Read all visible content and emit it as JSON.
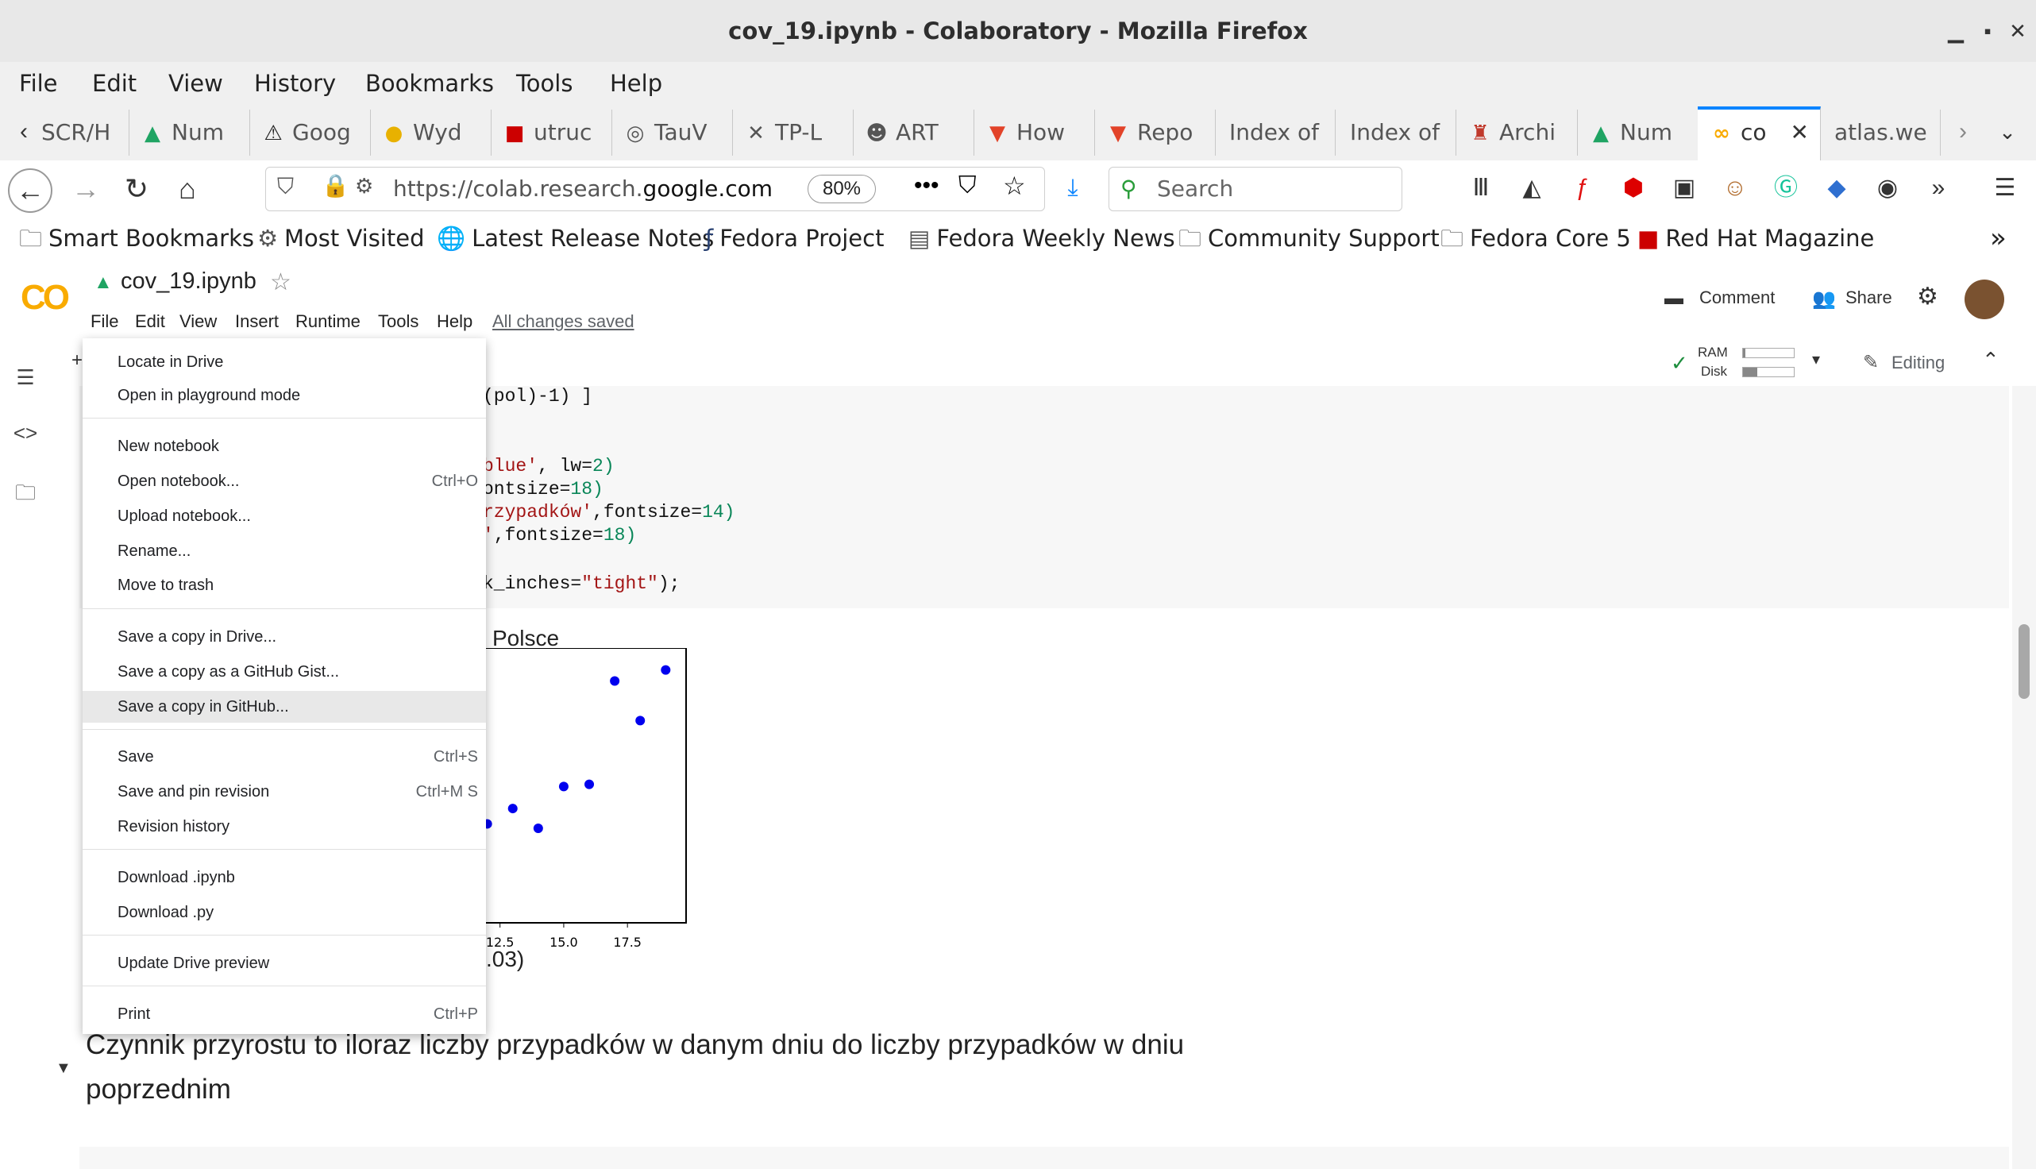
{
  "window": {
    "title": "cov_19.ipynb - Colaboratory - Mozilla Firefox"
  },
  "browser_menu": [
    "File",
    "Edit",
    "View",
    "History",
    "Bookmarks",
    "Tools",
    "Help"
  ],
  "tabs": [
    {
      "label": "SCR/H",
      "icon": "page-icon"
    },
    {
      "label": "Num",
      "icon": "drive-icon"
    },
    {
      "label": "Goog",
      "icon": "warning-icon"
    },
    {
      "label": "Wyd",
      "icon": "y-icon"
    },
    {
      "label": "utruc",
      "icon": "flag-icon"
    },
    {
      "label": "TauV",
      "icon": "tau-icon"
    },
    {
      "label": "TP-L",
      "icon": "x-icon"
    },
    {
      "label": "ART",
      "icon": "panda-icon"
    },
    {
      "label": "How",
      "icon": "gitlab-icon"
    },
    {
      "label": "Repo",
      "icon": "gitlab-icon"
    },
    {
      "label": "Index of",
      "icon": ""
    },
    {
      "label": "Index of",
      "icon": ""
    },
    {
      "label": "Archi",
      "icon": "archive-icon"
    },
    {
      "label": "Num",
      "icon": "drive-icon"
    },
    {
      "label": "co",
      "icon": "colab-icon"
    },
    {
      "label": "atlas.we",
      "icon": ""
    }
  ],
  "nav": {
    "url_prefix": "https://colab.research.",
    "url_domain": "google.com",
    "zoom": "80%",
    "search_placeholder": "Search"
  },
  "bookmarks": [
    {
      "label": "Smart Bookmarks",
      "icon": "folder-icon"
    },
    {
      "label": "Most Visited",
      "icon": "gear-icon"
    },
    {
      "label": "Latest Release Notes",
      "icon": "globe-icon"
    },
    {
      "label": "Fedora Project",
      "icon": "fedora-icon"
    },
    {
      "label": "Fedora Weekly News",
      "icon": "news-icon"
    },
    {
      "label": "Community Support",
      "icon": "folder-icon"
    },
    {
      "label": "Fedora Core 5",
      "icon": "folder-icon"
    },
    {
      "label": "Red Hat Magazine",
      "icon": "redhat-icon"
    }
  ],
  "colab": {
    "logo": "CO",
    "notebook_name": "cov_19.ipynb",
    "menu": [
      "File",
      "Edit",
      "View",
      "Insert",
      "Runtime",
      "Tools",
      "Help"
    ],
    "saved_status": "All changes saved",
    "comment_label": "Comment",
    "share_label": "Share",
    "ram_label": "RAM",
    "disk_label": "Disk",
    "editing_label": "Editing",
    "add_label": "+"
  },
  "file_menu": [
    {
      "label": "Locate in Drive",
      "shortcut": ""
    },
    {
      "label": "Open in playground mode",
      "shortcut": ""
    },
    {
      "label": "New notebook",
      "shortcut": ""
    },
    {
      "label": "Open notebook...",
      "shortcut": "Ctrl+O"
    },
    {
      "label": "Upload notebook...",
      "shortcut": ""
    },
    {
      "label": "Rename...",
      "shortcut": ""
    },
    {
      "label": "Move to trash",
      "shortcut": ""
    },
    {
      "label": "Save a copy in Drive...",
      "shortcut": ""
    },
    {
      "label": "Save a copy as a GitHub Gist...",
      "shortcut": ""
    },
    {
      "label": "Save a copy in GitHub...",
      "shortcut": ""
    },
    {
      "label": "Save",
      "shortcut": "Ctrl+S"
    },
    {
      "label": "Save and pin revision",
      "shortcut": "Ctrl+M S"
    },
    {
      "label": "Revision history",
      "shortcut": ""
    },
    {
      "label": "Download .ipynb",
      "shortcut": ""
    },
    {
      "label": "Download .py",
      "shortcut": ""
    },
    {
      "label": "Update Drive preview",
      "shortcut": ""
    },
    {
      "label": "Print",
      "shortcut": "Ctrl+P"
    }
  ],
  "code_lines": [
    {
      "a": "(pol)-1) ]",
      "b": "",
      "c": "",
      "d": ""
    },
    {
      "a": "",
      "b": "",
      "c": "",
      "d": ""
    },
    {
      "a": "",
      "b": "",
      "c": "",
      "d": ""
    },
    {
      "a": "",
      "b": "blue'",
      "c": ", lw=",
      "d": "2)"
    },
    {
      "a": "ontsize=",
      "b": "",
      "c": "",
      "d": "18)"
    },
    {
      "a": "",
      "b": "rzypadków'",
      "c": ",fontsize=",
      "d": "14)"
    },
    {
      "a": "",
      "b": "'",
      "c": ",fontsize=",
      "d": "18)"
    },
    {
      "a": "",
      "b": "",
      "c": "",
      "d": ""
    },
    {
      "a": "k_inches=",
      "b": "\"tight\"",
      "c": ");",
      "d": ""
    }
  ],
  "output": {
    "title_fragment": "Polsce",
    "xlabel_fragment": ".03)"
  },
  "chart_data": {
    "type": "scatter",
    "title": "Polsce",
    "xlabel": ".03)",
    "x_ticks": [
      "12.5",
      "15.0",
      "17.5"
    ],
    "x": [
      12,
      13,
      14,
      15,
      16,
      17,
      18,
      19
    ],
    "y": [
      0.95,
      1.02,
      0.93,
      1.12,
      1.13,
      1.6,
      1.42,
      1.65
    ],
    "xlim": [
      11.7,
      19.8
    ],
    "ylim": [
      0.5,
      1.75
    ],
    "color": "#0000ee"
  },
  "markdown": {
    "text": "Czynnik przyrostu to iloraz liczby przypadków w danym dniu do liczby przypadków w dniu poprzednim"
  },
  "colors": {
    "accent": "#0a84ff",
    "colab_orange": "#f9ab00"
  }
}
